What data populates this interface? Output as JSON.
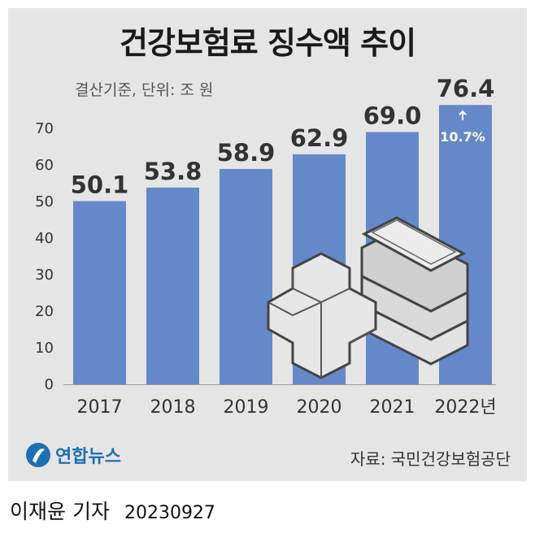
{
  "title": "건강보험료 징수액 추이",
  "subtitle": "결산기준, 단위: 조 원",
  "source": "자료: 국민건강보험공단",
  "logo_text": "연합뉴스",
  "reporter": "이재윤 기자",
  "date": "20230927",
  "bar_color": "#6589c8",
  "chart_data": {
    "type": "bar",
    "title": "건강보험료 징수액 추이",
    "categories": [
      "2017",
      "2018",
      "2019",
      "2020",
      "2021",
      "2022년"
    ],
    "values": [
      50.1,
      53.8,
      58.9,
      62.9,
      69.0,
      76.4
    ],
    "value_labels": [
      "50.1",
      "53.8",
      "58.9",
      "62.9",
      "69.0",
      "76.4"
    ],
    "yticks": [
      "0",
      "10",
      "20",
      "30",
      "40",
      "50",
      "60",
      "70"
    ],
    "ylim": [
      0,
      80
    ],
    "unit": "조 원",
    "annotation": "10.7%",
    "grid": false
  }
}
